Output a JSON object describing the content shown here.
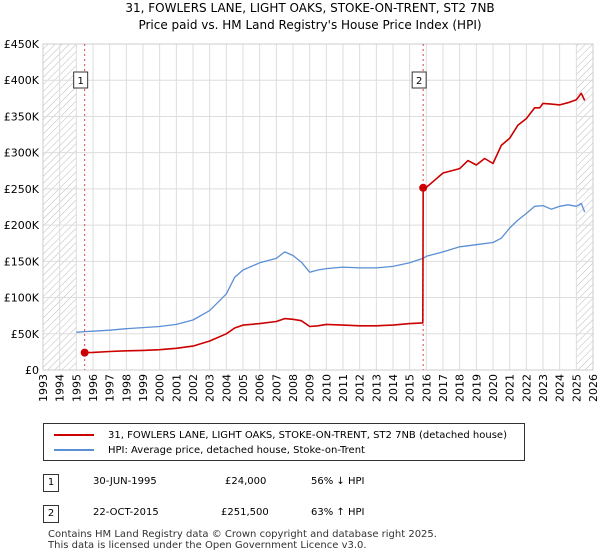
{
  "chart_data": {
    "type": "line",
    "title": "31, FOWLERS LANE, LIGHT OAKS, STOKE-ON-TRENT, ST2 7NB",
    "subtitle": "Price paid vs. HM Land Registry's House Price Index (HPI)",
    "xlim": [
      1993,
      2026
    ],
    "ylim": [
      0,
      450000
    ],
    "x_ticks": [
      "1993",
      "1994",
      "1995",
      "1996",
      "1997",
      "1998",
      "1999",
      "2000",
      "2001",
      "2002",
      "2003",
      "2004",
      "2005",
      "2006",
      "2007",
      "2008",
      "2009",
      "2010",
      "2011",
      "2012",
      "2013",
      "2014",
      "2015",
      "2016",
      "2017",
      "2018",
      "2019",
      "2020",
      "2021",
      "2022",
      "2023",
      "2024",
      "2025",
      "2026"
    ],
    "y_ticks": [
      "£0",
      "£50K",
      "£100K",
      "£150K",
      "£200K",
      "£250K",
      "£300K",
      "£350K",
      "£400K",
      "£450K"
    ],
    "hatched_regions": [
      [
        1993,
        1995.0
      ],
      [
        2025.0,
        2026
      ]
    ],
    "series": [
      {
        "name": "31, FOWLERS LANE, LIGHT OAKS, STOKE-ON-TRENT, ST2 7NB (detached house)",
        "color": "#cc0000",
        "x": [
          1995.5,
          1996,
          1997,
          1998,
          1999,
          2000,
          2001,
          2002,
          2003,
          2004,
          2004.5,
          2005,
          2006,
          2007,
          2007.5,
          2008,
          2008.5,
          2009,
          2009.5,
          2010,
          2011,
          2012,
          2013,
          2014,
          2015,
          2015.79,
          2015.81,
          2016,
          2016.5,
          2017,
          2018,
          2018.5,
          2019,
          2019.5,
          2020,
          2020.5,
          2021,
          2021.5,
          2022,
          2022.5,
          2022.8,
          2023,
          2023.5,
          2024,
          2024.5,
          2025,
          2025.3,
          2025.5
        ],
        "y": [
          24000,
          24300,
          25500,
          26500,
          27000,
          28000,
          30000,
          33000,
          40000,
          50000,
          58000,
          62000,
          64000,
          67000,
          71000,
          70000,
          68000,
          60000,
          61000,
          63000,
          62000,
          61000,
          61000,
          62000,
          64000,
          65000,
          251500,
          252000,
          262000,
          272000,
          278000,
          289000,
          283000,
          292000,
          285000,
          310000,
          320000,
          338000,
          347000,
          362000,
          362000,
          368000,
          367000,
          366000,
          369000,
          373000,
          382000,
          372000
        ]
      },
      {
        "name": "HPI: Average price, detached house, Stoke-on-Trent",
        "color": "#5b8fd4",
        "x": [
          1995,
          1995.5,
          1996,
          1997,
          1998,
          1999,
          2000,
          2001,
          2002,
          2003,
          2004,
          2004.5,
          2005,
          2006,
          2007,
          2007.5,
          2008,
          2008.5,
          2009,
          2009.5,
          2010,
          2011,
          2012,
          2013,
          2014,
          2015,
          2015.8,
          2016,
          2017,
          2018,
          2019,
          2020,
          2020.5,
          2021,
          2021.5,
          2022,
          2022.5,
          2023,
          2023.5,
          2024,
          2024.5,
          2025,
          2025.3,
          2025.5
        ],
        "y": [
          52000,
          53000,
          53500,
          55000,
          57000,
          58500,
          60000,
          63000,
          69000,
          82000,
          105000,
          128000,
          138000,
          148000,
          154000,
          163000,
          158000,
          149000,
          135000,
          138000,
          140000,
          142000,
          141000,
          141000,
          143000,
          148000,
          154000,
          157000,
          163000,
          170000,
          173000,
          176000,
          182000,
          196000,
          207000,
          216000,
          226000,
          227000,
          222000,
          226000,
          228000,
          226000,
          230000,
          218000
        ]
      }
    ],
    "markers": [
      {
        "label": "1",
        "x": 1995.5,
        "y": 24000
      },
      {
        "label": "2",
        "x": 2015.81,
        "y": 251500
      }
    ]
  },
  "legend": {
    "property_label": "31, FOWLERS LANE, LIGHT OAKS, STOKE-ON-TRENT, ST2 7NB (detached house)",
    "hpi_label": "HPI: Average price, detached house, Stoke-on-Trent",
    "property_color": "#cc0000",
    "hpi_color": "#5b8fd4"
  },
  "transactions": [
    {
      "num": "1",
      "date": "30-JUN-1995",
      "price": "£24,000",
      "hpi": "56% ↓ HPI"
    },
    {
      "num": "2",
      "date": "22-OCT-2015",
      "price": "£251,500",
      "hpi": "63% ↑ HPI"
    }
  ],
  "footer": {
    "line1": "Contains HM Land Registry data © Crown copyright and database right 2025.",
    "line2": "This data is licensed under the Open Government Licence v3.0."
  }
}
